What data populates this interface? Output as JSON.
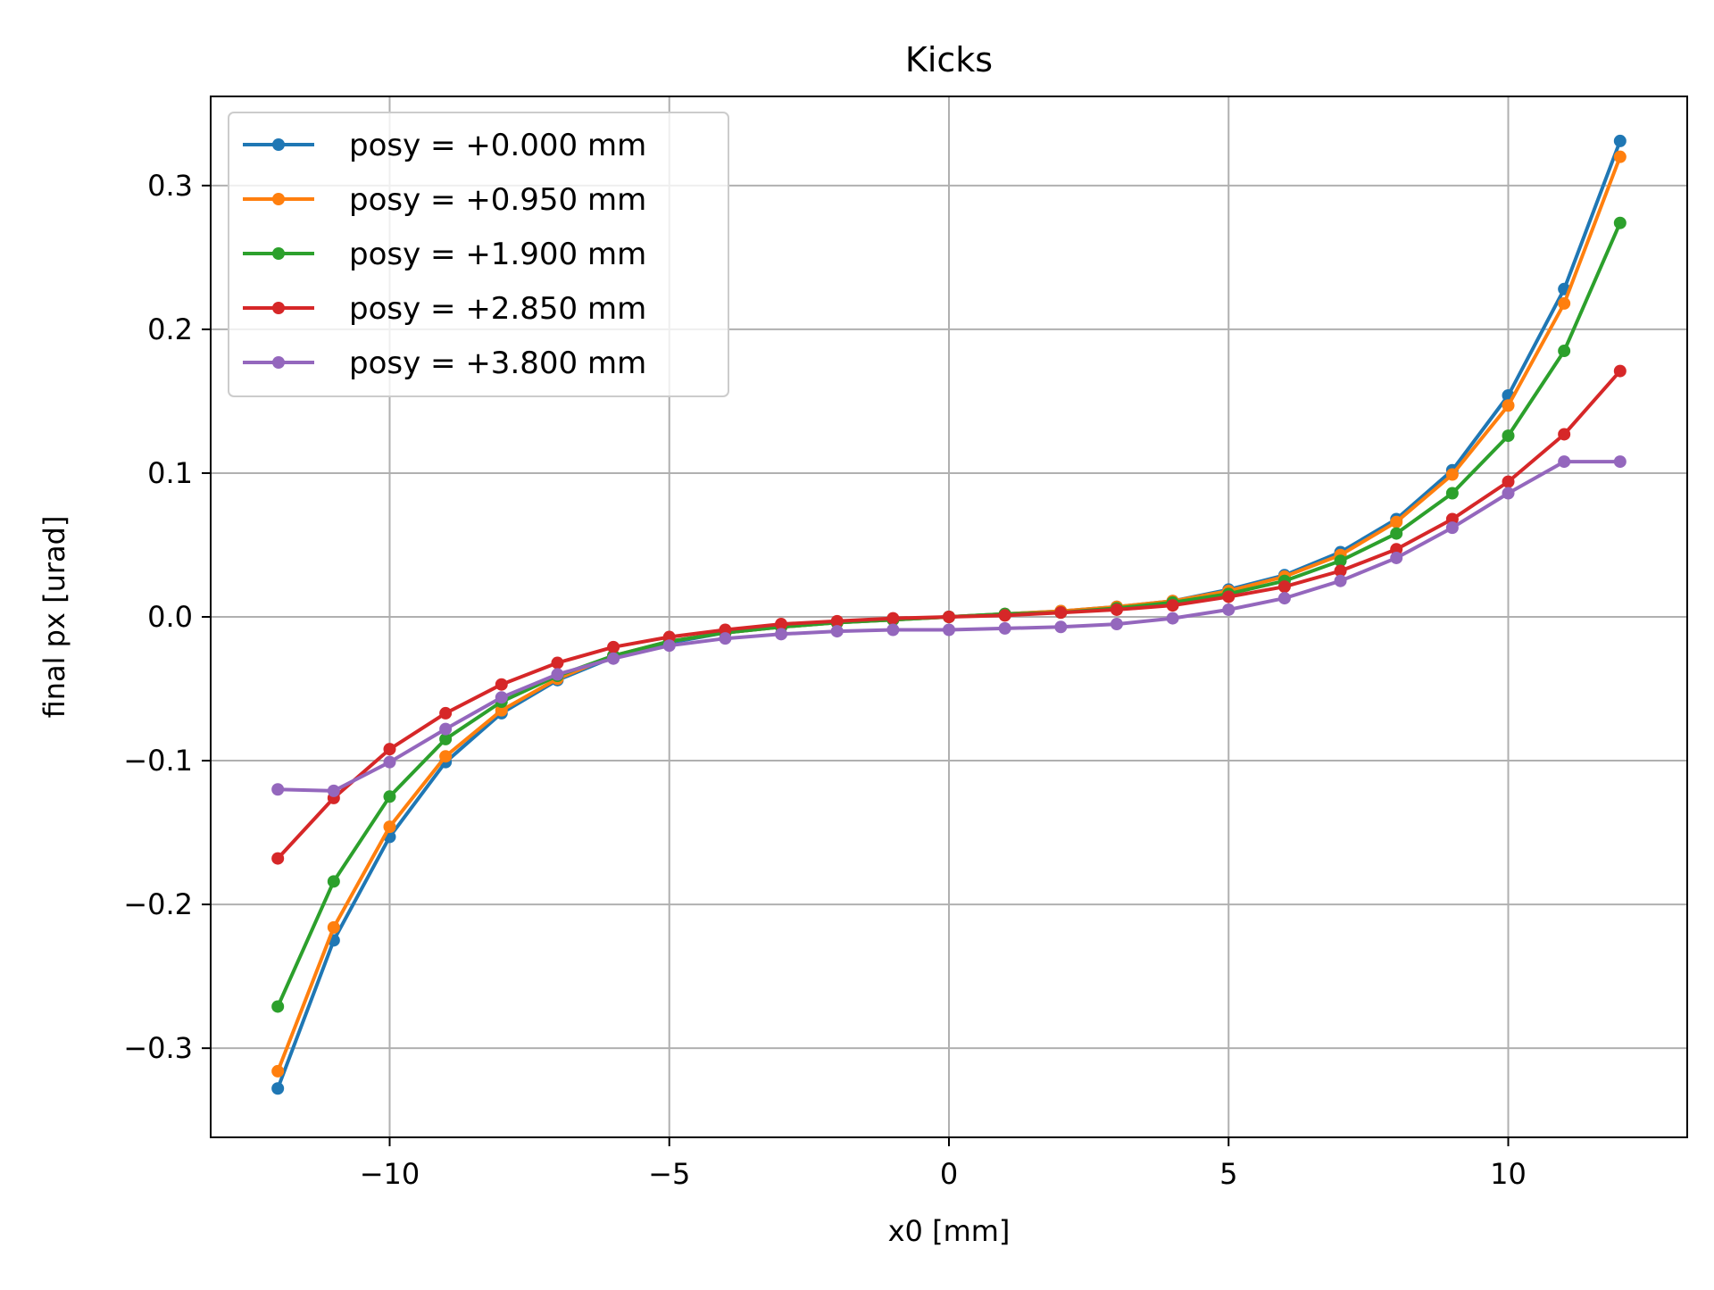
{
  "chart_data": {
    "type": "line",
    "title": "Kicks",
    "xlabel": "x0 [mm]",
    "ylabel": "final px [urad]",
    "xlim": [
      -13.2,
      13.2
    ],
    "ylim": [
      -0.362,
      0.362
    ],
    "xticks": [
      -10,
      -5,
      0,
      5,
      10
    ],
    "xtick_labels": [
      "−10",
      "−5",
      "0",
      "5",
      "10"
    ],
    "yticks": [
      -0.3,
      -0.2,
      -0.1,
      0.0,
      0.1,
      0.2,
      0.3
    ],
    "ytick_labels": [
      "−0.3",
      "−0.2",
      "−0.1",
      "0.0",
      "0.1",
      "0.2",
      "0.3"
    ],
    "grid": true,
    "legend_position": "upper-left",
    "x": [
      -12,
      -11,
      -10,
      -9,
      -8,
      -7,
      -6,
      -5,
      -4,
      -3,
      -2,
      -1,
      0,
      1,
      2,
      3,
      4,
      5,
      6,
      7,
      8,
      9,
      10,
      11,
      12
    ],
    "series": [
      {
        "name": "posy = +0.000 mm",
        "color": "#1f77b4",
        "values": [
          -0.328,
          -0.225,
          -0.153,
          -0.101,
          -0.067,
          -0.044,
          -0.028,
          -0.018,
          -0.011,
          -0.007,
          -0.004,
          -0.002,
          0.0,
          0.002,
          0.004,
          0.007,
          0.011,
          0.019,
          0.029,
          0.045,
          0.068,
          0.102,
          0.154,
          0.228,
          0.331
        ]
      },
      {
        "name": "posy = +0.950 mm",
        "color": "#ff7f0e",
        "values": [
          -0.316,
          -0.216,
          -0.146,
          -0.097,
          -0.065,
          -0.043,
          -0.027,
          -0.017,
          -0.011,
          -0.007,
          -0.004,
          -0.002,
          0.0,
          0.002,
          0.004,
          0.007,
          0.011,
          0.018,
          0.028,
          0.043,
          0.066,
          0.099,
          0.147,
          0.218,
          0.32
        ]
      },
      {
        "name": "posy = +1.900 mm",
        "color": "#2ca02c",
        "values": [
          -0.271,
          -0.184,
          -0.125,
          -0.085,
          -0.059,
          -0.041,
          -0.027,
          -0.017,
          -0.011,
          -0.007,
          -0.004,
          -0.002,
          0.0,
          0.002,
          0.003,
          0.006,
          0.01,
          0.016,
          0.025,
          0.039,
          0.058,
          0.086,
          0.126,
          0.185,
          0.274
        ]
      },
      {
        "name": "posy = +2.850 mm",
        "color": "#d62728",
        "values": [
          -0.168,
          -0.126,
          -0.092,
          -0.067,
          -0.047,
          -0.032,
          -0.021,
          -0.014,
          -0.009,
          -0.005,
          -0.003,
          -0.001,
          0.0,
          0.001,
          0.003,
          0.005,
          0.008,
          0.014,
          0.021,
          0.032,
          0.047,
          0.068,
          0.094,
          0.127,
          0.171
        ]
      },
      {
        "name": "posy = +3.800 mm",
        "color": "#9467bd",
        "values": [
          -0.12,
          -0.121,
          -0.101,
          -0.078,
          -0.056,
          -0.04,
          -0.029,
          -0.02,
          -0.015,
          -0.012,
          -0.01,
          -0.009,
          -0.009,
          -0.008,
          -0.007,
          -0.005,
          -0.001,
          0.005,
          0.013,
          0.025,
          0.041,
          0.062,
          0.086,
          0.108,
          0.108
        ]
      }
    ]
  }
}
